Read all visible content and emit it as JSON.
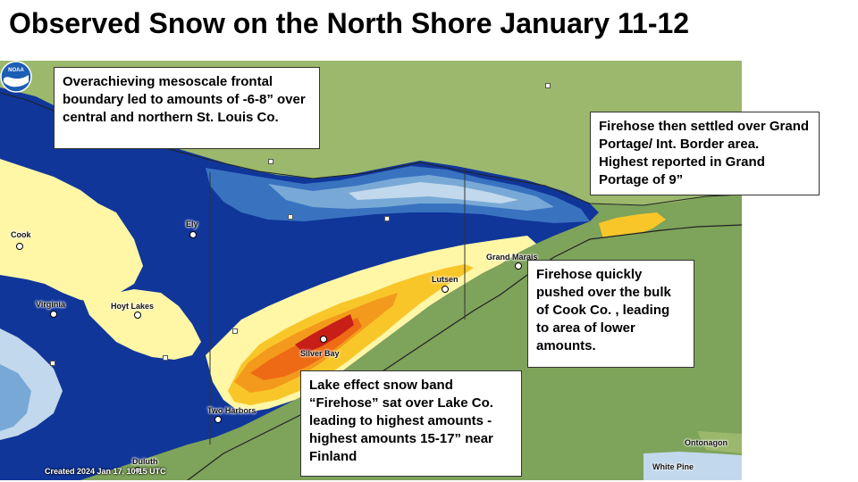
{
  "title": "Observed Snow on the North Shore January 11-12",
  "callouts": {
    "mesoscale": "Overachieving mesoscale frontal boundary led to amounts of -6-8” over central and northern St. Louis Co.",
    "grand_portage": "Firehose then settled over Grand Portage/ Int. Border area. Highest reported in Grand Portage of 9”",
    "cook_county": "Firehose quickly pushed over the bulk of Cook Co. , leading to area of lower amounts.",
    "lake_county": "Lake effect snow band “Firehose” sat over Lake Co. leading to highest amounts - highest amounts 15-17” near Finland"
  },
  "places": {
    "cook": "Cook",
    "ely": "Ely",
    "virginia": "Virginia",
    "hoyt_lakes": "Hoyt Lakes",
    "grand_marais": "Grand Marais",
    "lutsen": "Lutsen",
    "silver_bay": "Silver Bay",
    "two_harbors": "Two Harbors",
    "duluth": "Duluth",
    "ontonagon": "Ontonagon",
    "white_pine": "White Pine"
  },
  "created_stamp": "Created 2024 Jan 17, 10:15 UTC",
  "logo_text": "NOAA",
  "colors": {
    "canada": "#9bb86c",
    "lake": "#7ea35a",
    "snow_light_yellow": "#fff7a6",
    "snow_pale_blue": "#c2d8ec",
    "snow_light_blue": "#78a9d6",
    "snow_mid_blue": "#3973c0",
    "snow_dark_blue": "#10369a",
    "snow_gold": "#f9c62a",
    "snow_orange": "#f39a1c",
    "snow_dark_orange": "#ee6a14",
    "snow_red": "#c81e18"
  }
}
